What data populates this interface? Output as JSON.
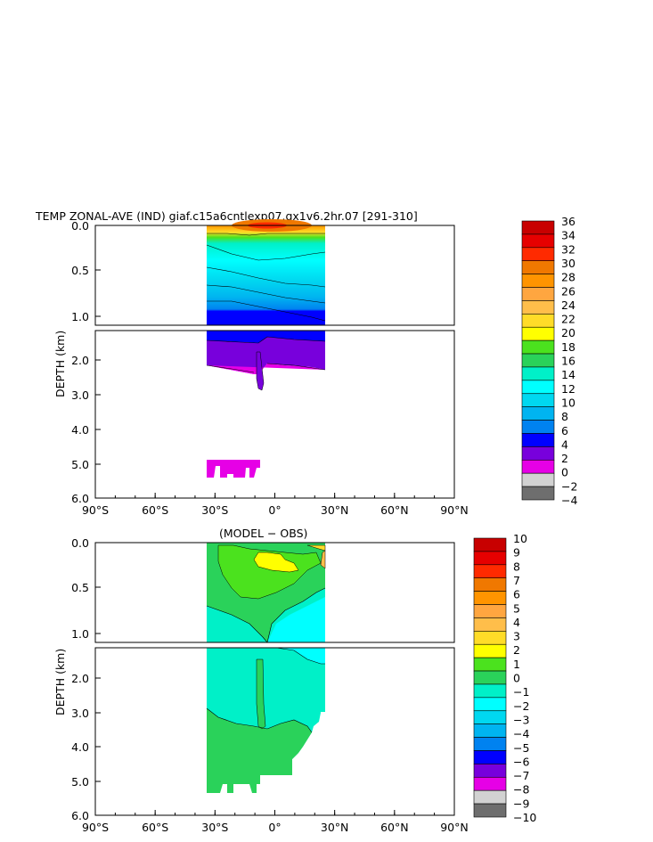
{
  "chart_data": [
    {
      "type": "heatmap",
      "title": "TEMP ZONAL-AVE (IND) giaf.c15a6cntlexp07.gx1v6.2hr.07 [291-310]",
      "ylabel": "DEPTH (km)",
      "xlabel": "",
      "x_ticks": [
        "90°S",
        "60°S",
        "30°S",
        "0°",
        "30°N",
        "60°N",
        "90°N"
      ],
      "y_ticks_upper": [
        "0.0",
        "0.5",
        "1.0"
      ],
      "y_ticks_lower": [
        "2.0",
        "3.0",
        "4.0",
        "5.0",
        "6.0"
      ],
      "xlim": [
        -90,
        90
      ],
      "ylim": [
        0,
        6
      ],
      "colorbar_labels": [
        "36",
        "34",
        "32",
        "30",
        "28",
        "26",
        "24",
        "22",
        "20",
        "18",
        "16",
        "14",
        "12",
        "10",
        "8",
        "6",
        "4",
        "2",
        "0",
        "−2",
        "−4"
      ],
      "colorbar_colors": [
        "#c80000",
        "#e60000",
        "#ff2a00",
        "#f07800",
        "#ff9400",
        "#ffa640",
        "#ffbe4a",
        "#ffdc28",
        "#ffff00",
        "#4be21e",
        "#2ad25a",
        "#00f0c8",
        "#00ffff",
        "#00d8f0",
        "#00b4f0",
        "#0082f0",
        "#0000ff",
        "#7800dc",
        "#e600e6",
        "#d2d2d2",
        "#6e6e6e"
      ]
    },
    {
      "type": "heatmap",
      "title": "(MODEL − OBS)",
      "ylabel": "DEPTH (km)",
      "xlabel": "",
      "x_ticks": [
        "90°S",
        "60°S",
        "30°S",
        "0°",
        "30°N",
        "60°N",
        "90°N"
      ],
      "y_ticks_upper": [
        "0.0",
        "0.5",
        "1.0"
      ],
      "y_ticks_lower": [
        "2.0",
        "3.0",
        "4.0",
        "5.0",
        "6.0"
      ],
      "xlim": [
        -90,
        90
      ],
      "ylim": [
        0,
        6
      ],
      "colorbar_labels": [
        "10",
        "9",
        "8",
        "7",
        "6",
        "5",
        "4",
        "3",
        "2",
        "1",
        "0",
        "−1",
        "−2",
        "−3",
        "−4",
        "−5",
        "−6",
        "−7",
        "−8",
        "−9",
        "−10"
      ],
      "colorbar_colors": [
        "#c80000",
        "#e60000",
        "#ff2a00",
        "#f07800",
        "#ff9400",
        "#ffa640",
        "#ffbe4a",
        "#ffdc28",
        "#ffff00",
        "#4be21e",
        "#2ad25a",
        "#00f0c8",
        "#00ffff",
        "#00d8f0",
        "#00b4f0",
        "#0082f0",
        "#0000ff",
        "#7800dc",
        "#e600e6",
        "#d2d2d2",
        "#6e6e6e"
      ]
    }
  ]
}
